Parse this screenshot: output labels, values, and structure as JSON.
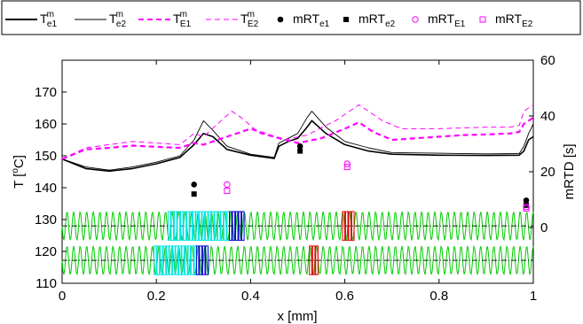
{
  "chart_data": {
    "type": "line",
    "xlabel": "x [mm]",
    "ylabel_left": "T [",
    "ylabel_left_sup": "o",
    "ylabel_left_tail": "C]",
    "ylabel_right": "mRTD [s]",
    "xlim": [
      0,
      1
    ],
    "ylim_left": [
      110,
      180
    ],
    "ylim_right": [
      -20,
      60
    ],
    "xticks": [
      0,
      0.2,
      0.4,
      0.6,
      0.8,
      1
    ],
    "xtick_labels": [
      "0",
      "0.2",
      "0.4",
      "0.6",
      "0.8",
      "1"
    ],
    "yticks_left": [
      110,
      120,
      130,
      140,
      150,
      160,
      170
    ],
    "ytick_labels_left": [
      "110",
      "120",
      "130",
      "140",
      "150",
      "160",
      "170"
    ],
    "yticks_right": [
      0,
      20,
      40,
      60
    ],
    "ytick_labels_right": [
      "0",
      "20",
      "40",
      "60"
    ],
    "grid": false,
    "legend_position": "top",
    "colors": {
      "black": "#000000",
      "magenta": "#ff00ff",
      "green": "#00cc00",
      "cyan": "#00e5e5",
      "blue": "#0000cc",
      "red": "#e00000"
    },
    "legend": [
      {
        "base": "T",
        "sup": "m",
        "sub": "e1",
        "style": "solid-thick",
        "color": "#000000"
      },
      {
        "base": "T",
        "sup": "m",
        "sub": "e2",
        "style": "solid-thin",
        "color": "#000000"
      },
      {
        "base": "T",
        "sup": "m",
        "sub": "E1",
        "style": "dashed-thick",
        "color": "#ff00ff"
      },
      {
        "base": "T",
        "sup": "m",
        "sub": "E2",
        "style": "dashed-thin",
        "color": "#ff00ff"
      },
      {
        "base": "mRT",
        "sup": "",
        "sub": "e1",
        "style": "marker-filled-circle",
        "color": "#000000"
      },
      {
        "base": "mRT",
        "sup": "",
        "sub": "e2",
        "style": "marker-filled-square",
        "color": "#000000"
      },
      {
        "base": "mRT",
        "sup": "",
        "sub": "E1",
        "style": "marker-open-circle",
        "color": "#ff00ff"
      },
      {
        "base": "mRT",
        "sup": "",
        "sub": "E2",
        "style": "marker-open-square",
        "color": "#ff00ff"
      }
    ],
    "series": [
      {
        "name": "T^m_e1",
        "axis": "left",
        "x": [
          0,
          0.05,
          0.1,
          0.15,
          0.2,
          0.25,
          0.28,
          0.3,
          0.32,
          0.35,
          0.4,
          0.45,
          0.46,
          0.48,
          0.5,
          0.52,
          0.53,
          0.56,
          0.6,
          0.65,
          0.7,
          0.8,
          0.9,
          0.97,
          0.98,
          0.99,
          1
        ],
        "y": [
          149,
          146,
          145.2,
          146,
          147.5,
          149.5,
          153.5,
          157,
          156,
          152,
          150.2,
          149.2,
          153,
          154.5,
          155.5,
          159,
          161,
          157,
          153.5,
          151.5,
          150.5,
          150.2,
          150.1,
          150.2,
          151.5,
          155,
          156
        ]
      },
      {
        "name": "T^m_e2",
        "axis": "left",
        "x": [
          0,
          0.05,
          0.1,
          0.15,
          0.2,
          0.25,
          0.28,
          0.3,
          0.32,
          0.35,
          0.4,
          0.45,
          0.46,
          0.48,
          0.5,
          0.52,
          0.53,
          0.56,
          0.6,
          0.65,
          0.7,
          0.8,
          0.9,
          0.97,
          0.98,
          0.99,
          1
        ],
        "y": [
          149,
          146.5,
          145.5,
          146.5,
          148,
          150,
          155,
          161,
          158,
          153,
          150.5,
          149.5,
          154,
          155.5,
          157,
          162,
          164,
          159,
          154.5,
          152.5,
          151,
          150.8,
          150.6,
          150.7,
          153,
          157,
          160
        ]
      },
      {
        "name": "T^m_E1",
        "axis": "left",
        "x": [
          0,
          0.05,
          0.1,
          0.15,
          0.2,
          0.25,
          0.28,
          0.3,
          0.33,
          0.37,
          0.4,
          0.45,
          0.5,
          0.55,
          0.6,
          0.63,
          0.66,
          0.7,
          0.75,
          0.8,
          0.85,
          0.9,
          0.95,
          0.97,
          0.98,
          1
        ],
        "y": [
          149,
          152,
          152.5,
          153.2,
          152.8,
          152.5,
          154,
          153.5,
          155,
          157,
          158.5,
          156,
          154,
          155.5,
          158.5,
          160.5,
          157.5,
          155,
          155.5,
          156,
          156.5,
          156.7,
          157,
          157.5,
          160,
          162
        ]
      },
      {
        "name": "T^m_E2",
        "axis": "left",
        "x": [
          0,
          0.05,
          0.1,
          0.15,
          0.2,
          0.25,
          0.28,
          0.3,
          0.33,
          0.36,
          0.38,
          0.42,
          0.47,
          0.52,
          0.58,
          0.62,
          0.63,
          0.68,
          0.72,
          0.8,
          0.9,
          0.95,
          0.97,
          0.98,
          1
        ],
        "y": [
          149,
          152.5,
          153.5,
          154.5,
          154,
          153.5,
          157,
          156,
          160,
          164,
          162,
          157,
          155,
          156.5,
          161,
          165,
          166,
          161,
          158.5,
          158.5,
          159,
          159,
          159.5,
          164,
          166
        ]
      }
    ],
    "markers": [
      {
        "name": "mRT_e1",
        "shape": "filled-circle",
        "axis": "left",
        "x": [
          0.28,
          0.505,
          0.985
        ],
        "y": [
          141,
          153,
          136
        ]
      },
      {
        "name": "mRT_e2",
        "shape": "filled-square",
        "axis": "left",
        "x": [
          0.28,
          0.505,
          0.985
        ],
        "y": [
          138,
          151.5,
          134.5
        ]
      },
      {
        "name": "mRT_E1",
        "shape": "open-circle",
        "axis": "left",
        "x": [
          0.35,
          0.605,
          0.985
        ],
        "y": [
          141,
          147.5,
          134
        ]
      },
      {
        "name": "mRT_E2",
        "shape": "open-square",
        "axis": "left",
        "x": [
          0.35,
          0.605,
          0.985
        ],
        "y": [
          139,
          146.5,
          133.5
        ]
      }
    ],
    "channels": [
      {
        "name": "upper",
        "center_y": 128,
        "half_width": 4.5
      },
      {
        "name": "lower",
        "center_y": 117.2,
        "half_width": 4.5
      }
    ],
    "particles": [
      {
        "channel": "upper",
        "color": "#00e5e5",
        "x_range": [
          0.225,
          0.355
        ]
      },
      {
        "channel": "upper",
        "color": "#0000cc",
        "x_range": [
          0.355,
          0.385
        ]
      },
      {
        "channel": "upper",
        "color": "#e00000",
        "x_range": [
          0.595,
          0.615
        ]
      },
      {
        "channel": "lower",
        "color": "#00e5e5",
        "x_range": [
          0.195,
          0.285
        ]
      },
      {
        "channel": "lower",
        "color": "#0000cc",
        "x_range": [
          0.285,
          0.31
        ]
      },
      {
        "channel": "lower",
        "color": "#e00000",
        "x_range": [
          0.525,
          0.54
        ]
      }
    ]
  }
}
